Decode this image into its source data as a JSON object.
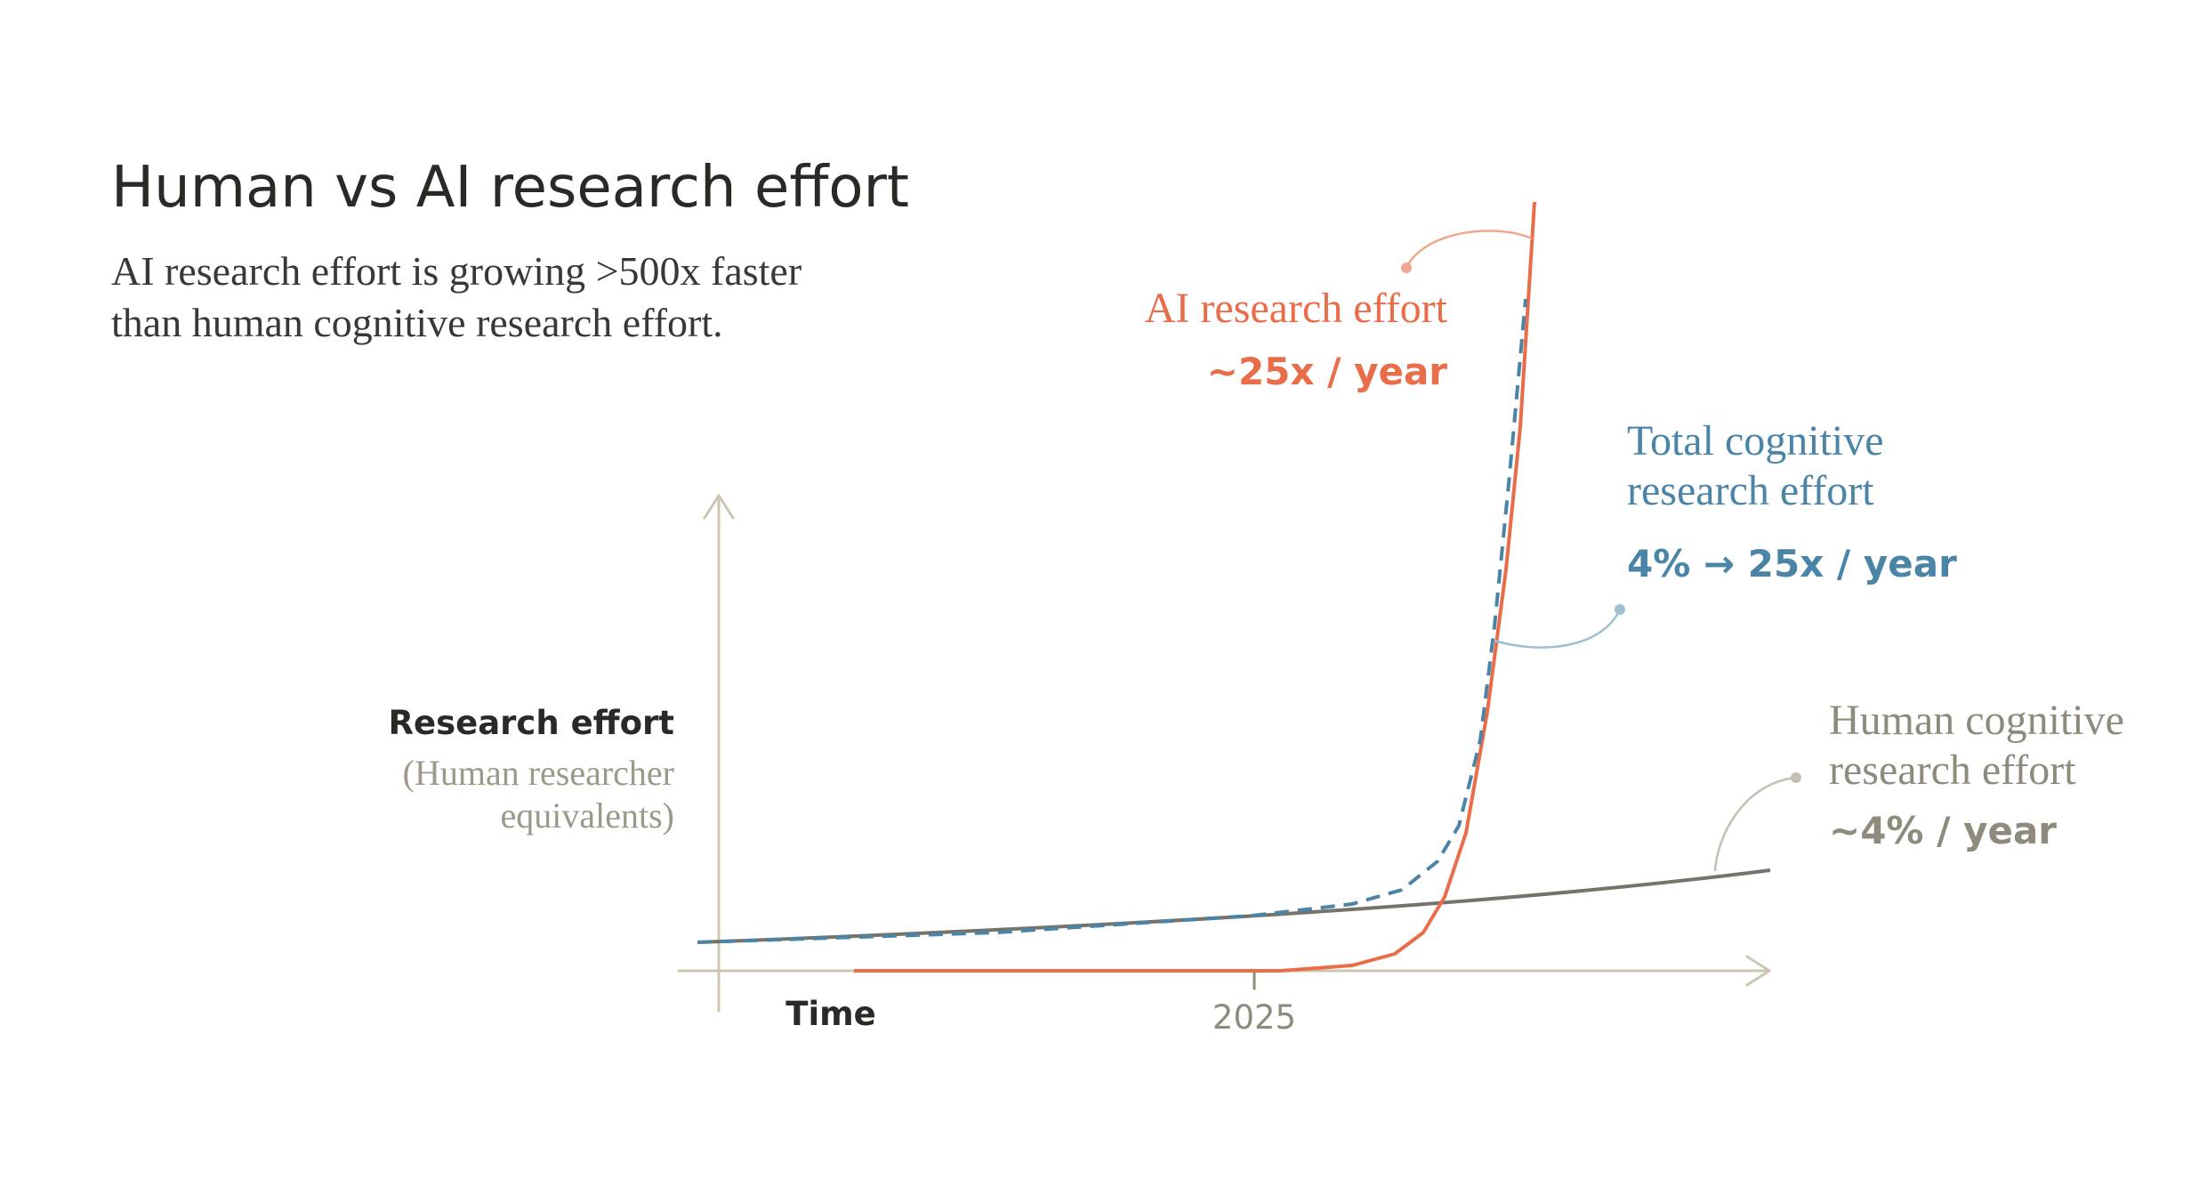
{
  "chart_data": {
    "type": "line",
    "title": "Human vs AI research effort",
    "subtitle": [
      "AI research effort is growing >500x faster",
      "than human cognitive research effort."
    ],
    "y_label": "Research effort",
    "y_sublabel": [
      "(Human researcher",
      "equivalents)"
    ],
    "x_label": "Time",
    "x_marker": "2025",
    "annotations": [
      {
        "lines": [
          "AI research effort"
        ],
        "rate": "~25x / year",
        "color": "#e96d49"
      },
      {
        "lines": [
          "Total cognitive",
          "research effort"
        ],
        "rate": "4% → 25x / year",
        "color": "#4a84a6"
      },
      {
        "lines": [
          "Human cognitive",
          "research effort"
        ],
        "rate": "~4% / year",
        "color": "#8e8b7d"
      }
    ]
  }
}
